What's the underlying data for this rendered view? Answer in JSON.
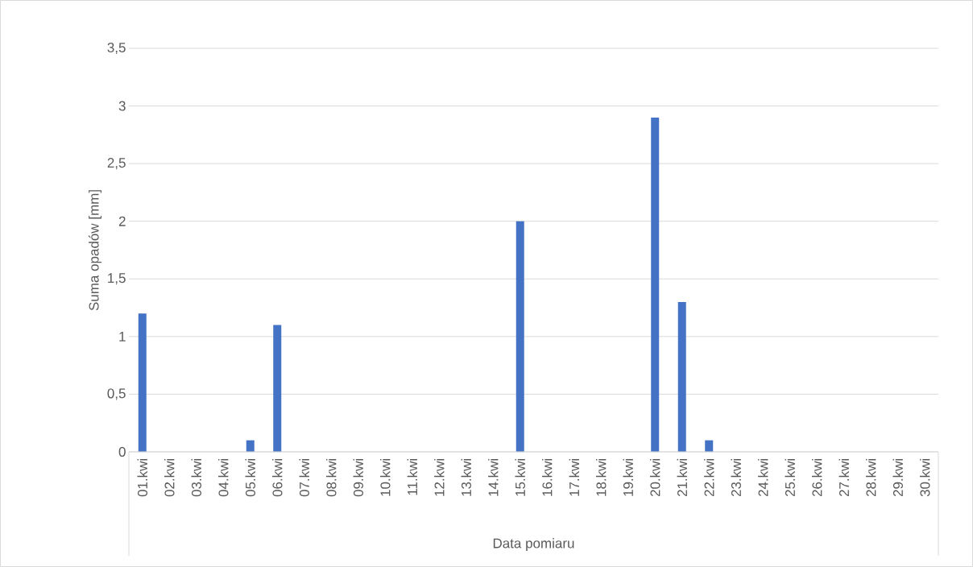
{
  "chart_data": {
    "type": "bar",
    "xlabel": "Data pomiaru",
    "ylabel": "Suma opadów [mm]",
    "categories": [
      "01.kwi",
      "02.kwi",
      "03.kwi",
      "04.kwi",
      "05.kwi",
      "06.kwi",
      "07.kwi",
      "08.kwi",
      "09.kwi",
      "10.kwi",
      "11.kwi",
      "12.kwi",
      "13.kwi",
      "14.kwi",
      "15.kwi",
      "16.kwi",
      "17.kwi",
      "18.kwi",
      "19.kwi",
      "20.kwi",
      "21.kwi",
      "22.kwi",
      "23.kwi",
      "24.kwi",
      "25.kwi",
      "26.kwi",
      "27.kwi",
      "28.kwi",
      "29.kwi",
      "30.kwi"
    ],
    "values": [
      1.2,
      0,
      0,
      0,
      0.1,
      1.1,
      0,
      0,
      0,
      0,
      0,
      0,
      0,
      0,
      2.0,
      0,
      0,
      0,
      0,
      2.9,
      1.3,
      0.1,
      0,
      0,
      0,
      0,
      0,
      0,
      0,
      0
    ],
    "color": "#4472c4",
    "ylim": [
      0,
      3.5
    ],
    "yticks": [
      {
        "value": 0,
        "label": "0"
      },
      {
        "value": 0.5,
        "label": "0,5"
      },
      {
        "value": 1,
        "label": "1"
      },
      {
        "value": 1.5,
        "label": "1,5"
      },
      {
        "value": 2,
        "label": "2"
      },
      {
        "value": 2.5,
        "label": "2,5"
      },
      {
        "value": 3,
        "label": "3"
      },
      {
        "value": 3.5,
        "label": "3,5"
      }
    ],
    "grid": "y"
  }
}
